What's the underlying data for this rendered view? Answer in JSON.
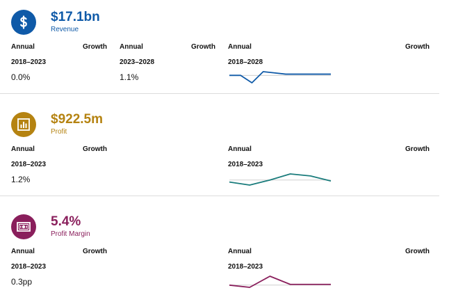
{
  "sections": [
    {
      "headline": "$17.1bn",
      "sublabel": "Revenue",
      "color": "#0f5aa8",
      "icon": "dollar-icon",
      "blocks": [
        {
          "annual": "Annual",
          "growth": "Growth",
          "period": "2018–2023",
          "value": "0.0%"
        },
        {
          "annual": "Annual",
          "growth": "Growth",
          "period": "2023–2028",
          "value": "1.1%"
        },
        {
          "annual": "Annual",
          "growth": "Growth",
          "period": "2018–2028"
        }
      ],
      "sparkline": [
        0.0,
        0.0,
        -0.6,
        0.3,
        0.2,
        0.1,
        0.1,
        0.1,
        0.1,
        0.1
      ]
    },
    {
      "headline": "$922.5m",
      "sublabel": "Profit",
      "color": "#b58311",
      "line_color": "#1a7c7c",
      "icon": "bar-chart-icon",
      "blocks": [
        {
          "annual": "Annual",
          "growth": "Growth",
          "period": "2018–2023",
          "value": "1.2%"
        },
        {
          "annual": "Annual",
          "growth": "Growth",
          "period": "2018–2023"
        }
      ],
      "sparkline": [
        -0.2,
        -0.5,
        0.0,
        0.6,
        0.4,
        -0.1
      ]
    },
    {
      "headline": "5.4%",
      "sublabel": "Profit Margin",
      "color": "#8a1f5c",
      "icon": "banknote-icon",
      "blocks": [
        {
          "annual": "Annual",
          "growth": "Growth",
          "period": "2018–2023",
          "value": "0.3pp"
        },
        {
          "annual": "Annual",
          "growth": "Growth",
          "period": "2018–2023"
        }
      ],
      "sparkline": [
        0.0,
        -0.3,
        1.2,
        0.1,
        0.1,
        0.1
      ]
    }
  ]
}
